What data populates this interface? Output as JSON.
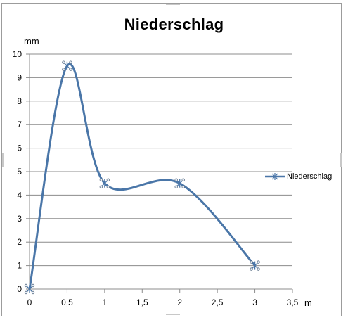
{
  "chart_data": {
    "type": "line",
    "title": "Niederschlag",
    "ylabel": "mm",
    "xlabel": "m",
    "x": [
      0,
      0.5,
      1,
      2,
      3
    ],
    "series": [
      {
        "name": "Niederschlag",
        "values": [
          0,
          9.5,
          4.5,
          4.5,
          1
        ],
        "color": "#4a76a8",
        "smooth": true,
        "marker": "star-x"
      }
    ],
    "xlim": [
      0,
      3.5
    ],
    "ylim": [
      0,
      10
    ],
    "xticks": [
      "0",
      "0,5",
      "1",
      "1,5",
      "2",
      "2,5",
      "3",
      "3,5"
    ],
    "yticks": [
      "0",
      "1",
      "2",
      "3",
      "4",
      "5",
      "6",
      "7",
      "8",
      "9",
      "10"
    ],
    "grid": "horizontal",
    "legend_position": "right"
  }
}
